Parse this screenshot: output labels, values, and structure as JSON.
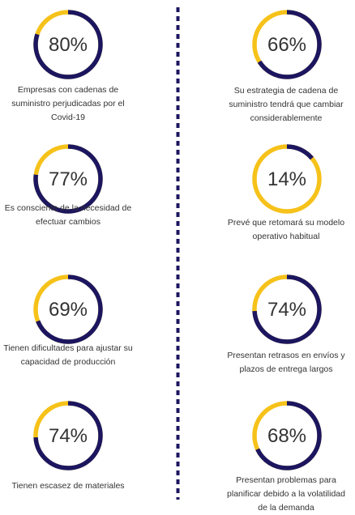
{
  "colors": {
    "accent": "#f6c21a",
    "track": "#1c1660",
    "text": "#333333",
    "divider": "#1c1660"
  },
  "chart_data": {
    "type": "donut",
    "items": [
      {
        "value": 80,
        "label": "80%",
        "caption": "Empresas con cadenas de suministro perjudicadas por el Covid-19"
      },
      {
        "value": 66,
        "label": "66%",
        "caption": "Su estrategia de cadena de suministro tendrá que cambiar considerablemente"
      },
      {
        "value": 77,
        "label": "77%",
        "caption": "Es consciente de la necesidad de efectuar cambios"
      },
      {
        "value": 14,
        "label": "14%",
        "caption": "Prevé que retomará su modelo operativo habitual"
      },
      {
        "value": 69,
        "label": "69%",
        "caption": "Tienen dificultades para ajustar su capacidad de producción"
      },
      {
        "value": 74,
        "label": "74%",
        "caption": "Presentan retrasos en envíos y plazos de entrega largos"
      },
      {
        "value": 74,
        "label": "74%",
        "caption": "Tienen escasez de materiales"
      },
      {
        "value": 68,
        "label": "68%",
        "caption": "Presentan problemas para planificar debido a la volatilidad de la demanda"
      }
    ]
  }
}
